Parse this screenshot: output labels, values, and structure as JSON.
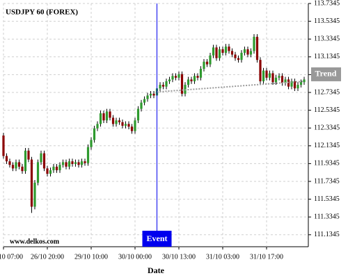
{
  "chart_data": {
    "type": "candlestick",
    "title": "USDJPY 60 (FOREX)",
    "watermark": "www.delkos.com",
    "x_label": "Date",
    "up_color": "#2e9a2e",
    "down_color": "#8b0000",
    "grid": true,
    "ylim": [
      111.0,
      113.7345
    ],
    "yticks": [
      111.1345,
      111.3345,
      111.5345,
      111.7345,
      111.9345,
      112.1345,
      112.3345,
      112.5345,
      112.7345,
      112.9345,
      113.1345,
      113.3345,
      113.5345,
      113.7345
    ],
    "xlim": [
      0,
      97.33
    ],
    "xticks": [
      {
        "value": 0,
        "label": "10 07:00"
      },
      {
        "value": 14,
        "label": "26/10 20:00"
      },
      {
        "value": 28,
        "label": "29/10 10:00"
      },
      {
        "value": 42,
        "label": "30/10 00:00"
      },
      {
        "value": 56,
        "label": "30/10 13:00"
      },
      {
        "value": 70,
        "label": "31/10 03:00"
      },
      {
        "value": 84,
        "label": "31/10 17:00"
      }
    ],
    "open": [
      112.25,
      112.02,
      111.96,
      111.92,
      111.88,
      111.95,
      111.9,
      111.85,
      112.08,
      111.98,
      111.45,
      111.72,
      111.95,
      112.05,
      111.88,
      111.82,
      111.86,
      111.9,
      111.86,
      111.92,
      111.95,
      111.9,
      111.96,
      111.93,
      111.95,
      111.92,
      111.96,
      111.94,
      112.12,
      112.2,
      112.33,
      112.38,
      112.5,
      112.42,
      112.52,
      112.45,
      112.38,
      112.42,
      112.4,
      112.36,
      112.38,
      112.35,
      112.3,
      112.42,
      112.55,
      112.62,
      112.66,
      112.7,
      112.72,
      112.7,
      112.78,
      112.82,
      112.8,
      112.86,
      112.88,
      112.92,
      112.9,
      112.94,
      112.72,
      112.82,
      112.88,
      112.86,
      112.92,
      112.9,
      113.0,
      113.08,
      113.05,
      113.15,
      113.24,
      113.12,
      113.22,
      113.18,
      113.25,
      113.2,
      113.16,
      113.12,
      113.1,
      113.18,
      113.22,
      113.16,
      113.2,
      113.36,
      113.1,
      112.86,
      112.98,
      112.9,
      112.95,
      112.85,
      112.9,
      112.92,
      112.84,
      112.88,
      112.8,
      112.86,
      112.78,
      112.82,
      112.85
    ],
    "close": [
      112.02,
      111.96,
      111.92,
      111.88,
      111.95,
      111.9,
      111.85,
      112.08,
      111.98,
      111.45,
      111.72,
      111.95,
      112.05,
      111.88,
      111.82,
      111.86,
      111.9,
      111.86,
      111.92,
      111.95,
      111.9,
      111.96,
      111.93,
      111.95,
      111.92,
      111.96,
      111.94,
      112.12,
      112.2,
      112.33,
      112.38,
      112.5,
      112.42,
      112.52,
      112.45,
      112.38,
      112.42,
      112.4,
      112.36,
      112.38,
      112.35,
      112.3,
      112.42,
      112.55,
      112.62,
      112.66,
      112.7,
      112.72,
      112.7,
      112.78,
      112.82,
      112.8,
      112.86,
      112.88,
      112.92,
      112.9,
      112.94,
      112.72,
      112.82,
      112.88,
      112.86,
      112.92,
      112.9,
      113.0,
      113.08,
      113.05,
      113.15,
      113.24,
      113.12,
      113.22,
      113.18,
      113.25,
      113.2,
      113.16,
      113.12,
      113.1,
      113.18,
      113.22,
      113.16,
      113.2,
      113.36,
      113.1,
      112.86,
      112.98,
      112.9,
      112.95,
      112.85,
      112.9,
      112.92,
      112.84,
      112.88,
      112.8,
      112.86,
      112.78,
      112.82,
      112.85,
      112.88
    ],
    "high": [
      112.28,
      112.05,
      111.99,
      111.95,
      111.98,
      111.98,
      111.93,
      112.11,
      112.11,
      112.01,
      111.75,
      111.98,
      112.08,
      112.08,
      111.91,
      111.89,
      111.93,
      111.93,
      111.95,
      111.98,
      111.98,
      111.99,
      111.99,
      111.98,
      111.98,
      111.99,
      111.99,
      112.15,
      112.23,
      112.36,
      112.41,
      112.53,
      112.53,
      112.55,
      112.55,
      112.48,
      112.45,
      112.45,
      112.43,
      112.41,
      112.41,
      112.38,
      112.45,
      112.58,
      112.65,
      112.69,
      112.73,
      112.75,
      112.75,
      112.81,
      112.85,
      112.85,
      112.89,
      112.91,
      112.95,
      112.95,
      112.97,
      112.97,
      112.85,
      112.91,
      112.91,
      112.95,
      112.95,
      113.03,
      113.11,
      113.11,
      113.18,
      113.27,
      113.27,
      113.25,
      113.25,
      113.28,
      113.28,
      113.23,
      113.19,
      113.15,
      113.21,
      113.25,
      113.25,
      113.23,
      113.39,
      113.39,
      113.13,
      113.01,
      113.01,
      112.98,
      112.98,
      112.93,
      112.95,
      112.95,
      112.91,
      112.91,
      112.89,
      112.89,
      112.85,
      112.88,
      112.91
    ],
    "low": [
      111.99,
      111.93,
      111.89,
      111.85,
      111.85,
      111.87,
      111.82,
      111.82,
      111.95,
      111.38,
      111.42,
      111.69,
      111.92,
      111.85,
      111.79,
      111.79,
      111.83,
      111.83,
      111.83,
      111.89,
      111.87,
      111.87,
      111.9,
      111.9,
      111.89,
      111.89,
      111.91,
      111.91,
      112.09,
      112.17,
      112.3,
      112.35,
      112.39,
      112.39,
      112.42,
      112.35,
      112.35,
      112.37,
      112.33,
      112.33,
      112.32,
      112.27,
      112.27,
      112.39,
      112.52,
      112.59,
      112.63,
      112.67,
      112.67,
      112.67,
      112.75,
      112.77,
      112.77,
      112.83,
      112.85,
      112.87,
      112.87,
      112.69,
      112.69,
      112.79,
      112.83,
      112.83,
      112.87,
      112.87,
      112.97,
      113.02,
      113.02,
      113.12,
      113.09,
      113.09,
      113.15,
      113.15,
      113.17,
      113.13,
      113.09,
      113.07,
      113.07,
      113.15,
      113.13,
      113.13,
      113.17,
      113.07,
      112.83,
      112.83,
      112.87,
      112.87,
      112.82,
      112.82,
      112.87,
      112.81,
      112.81,
      112.77,
      112.77,
      112.75,
      112.75,
      112.79,
      112.82
    ],
    "event": {
      "label": "Event",
      "x": 49,
      "color": "#0000ee"
    },
    "trend": {
      "label": "Trend",
      "color": "#999999",
      "x": [
        49,
        96
      ],
      "values": [
        112.74,
        112.86
      ]
    }
  }
}
